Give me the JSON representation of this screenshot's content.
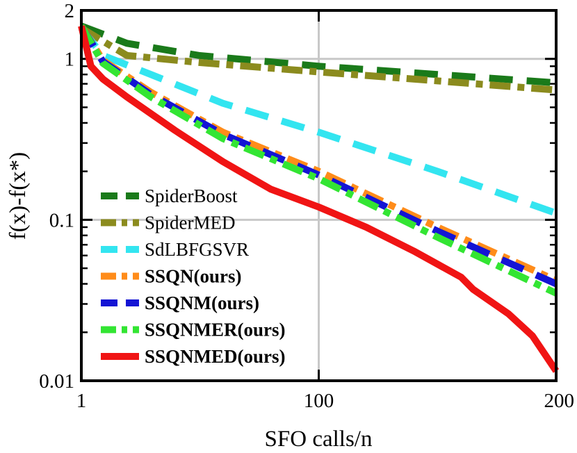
{
  "chart_data": {
    "type": "line",
    "xlabel": "SFO calls/n",
    "ylabel": "f(x)-f(x*)",
    "y_scale": "log",
    "xlim": [
      1,
      200
    ],
    "ylim": [
      0.01,
      2
    ],
    "grid": true,
    "legend_position": "bottom-left",
    "x_ticks": [
      {
        "value": 1,
        "label": "1"
      },
      {
        "value": 100,
        "label": "100"
      },
      {
        "value": 200,
        "label": "200"
      }
    ],
    "y_ticks": [
      {
        "value": 0.01,
        "label": "0.01"
      },
      {
        "value": 0.1,
        "label": "0.1"
      },
      {
        "value": 1,
        "label": "1"
      },
      {
        "value": 2,
        "label": "2"
      }
    ],
    "series": [
      {
        "name": "SpiderBoost",
        "color": "#1a7a1a",
        "style": "long-dash",
        "bold": false,
        "x": [
          1,
          20,
          50,
          100,
          150,
          200
        ],
        "y": [
          1.6,
          1.25,
          1.05,
          0.9,
          0.8,
          0.71
        ]
      },
      {
        "name": "SpiderMED",
        "color": "#8b8b1e",
        "style": "dash-dot",
        "bold": false,
        "x": [
          1,
          20,
          50,
          100,
          150,
          200
        ],
        "y": [
          1.55,
          1.05,
          0.95,
          0.83,
          0.73,
          0.64
        ]
      },
      {
        "name": "SdLBFGSVR",
        "color": "#33e5f0",
        "style": "long-dash",
        "bold": false,
        "x": [
          1,
          10,
          30,
          60,
          100,
          150,
          200
        ],
        "y": [
          1.55,
          1.05,
          0.8,
          0.53,
          0.35,
          0.2,
          0.11
        ]
      },
      {
        "name": "SSQN(ours)",
        "color": "#ff8c1a",
        "style": "dash-dot",
        "bold": true,
        "x": [
          1,
          10,
          30,
          60,
          100,
          150,
          200
        ],
        "y": [
          1.6,
          0.98,
          0.62,
          0.35,
          0.2,
          0.09,
          0.042
        ]
      },
      {
        "name": "SSQNM(ours)",
        "color": "#1414d4",
        "style": "long-dash",
        "bold": true,
        "x": [
          1,
          10,
          30,
          60,
          100,
          150,
          200
        ],
        "y": [
          1.6,
          0.96,
          0.6,
          0.34,
          0.19,
          0.085,
          0.04
        ]
      },
      {
        "name": "SSQNMER(ours)",
        "color": "#33e533",
        "style": "dash-dot",
        "bold": true,
        "x": [
          1,
          10,
          30,
          60,
          100,
          150,
          200
        ],
        "y": [
          1.6,
          0.94,
          0.58,
          0.32,
          0.18,
          0.078,
          0.035
        ]
      },
      {
        "name": "SSQNMED(ours)",
        "color": "#f01414",
        "style": "solid",
        "bold": true,
        "x": [
          1,
          5,
          10,
          20,
          40,
          60,
          80,
          100,
          120,
          140,
          160,
          165,
          180,
          190,
          200
        ],
        "y": [
          1.6,
          0.9,
          0.75,
          0.58,
          0.36,
          0.23,
          0.155,
          0.12,
          0.09,
          0.064,
          0.044,
          0.037,
          0.026,
          0.019,
          0.0115
        ]
      }
    ]
  }
}
